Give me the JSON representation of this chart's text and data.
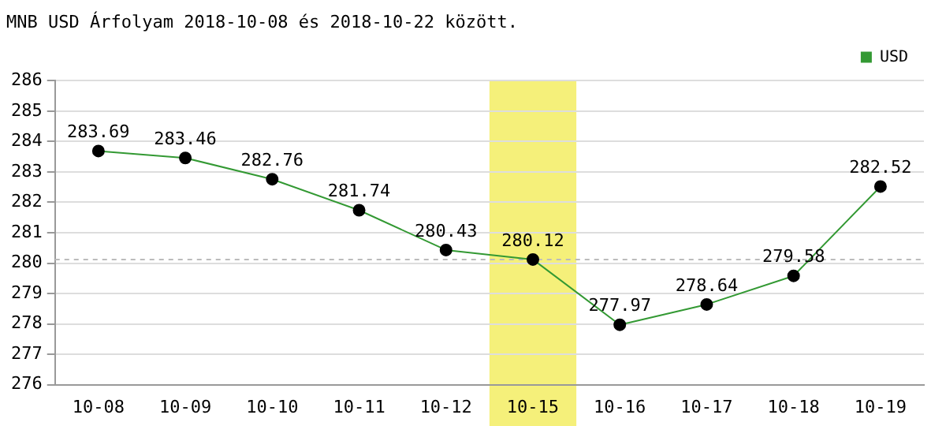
{
  "chart_data": {
    "type": "line",
    "title": "MNB USD Árfolyam 2018-10-08 és 2018-10-22 között.",
    "categories": [
      "10-08",
      "10-09",
      "10-10",
      "10-11",
      "10-12",
      "10-15",
      "10-16",
      "10-17",
      "10-18",
      "10-19"
    ],
    "series": [
      {
        "name": "USD",
        "color": "#339933",
        "values": [
          283.69,
          283.46,
          282.76,
          281.74,
          280.43,
          280.12,
          277.97,
          278.64,
          279.58,
          282.52
        ]
      }
    ],
    "ylim": [
      276,
      286
    ],
    "yticks": [
      276,
      277,
      278,
      279,
      280,
      281,
      282,
      283,
      284,
      285,
      286
    ],
    "grid": "y",
    "legend": "top right",
    "marker": "circle",
    "data_labels": true,
    "ref_lines": [
      {
        "axis": "y",
        "value": 280.12,
        "color": "#bbbbbb",
        "line_style": "dashed"
      }
    ],
    "bands": [
      {
        "axis": "x",
        "from": "10-15",
        "to": "10-15",
        "color": "#f5f07a"
      }
    ]
  }
}
